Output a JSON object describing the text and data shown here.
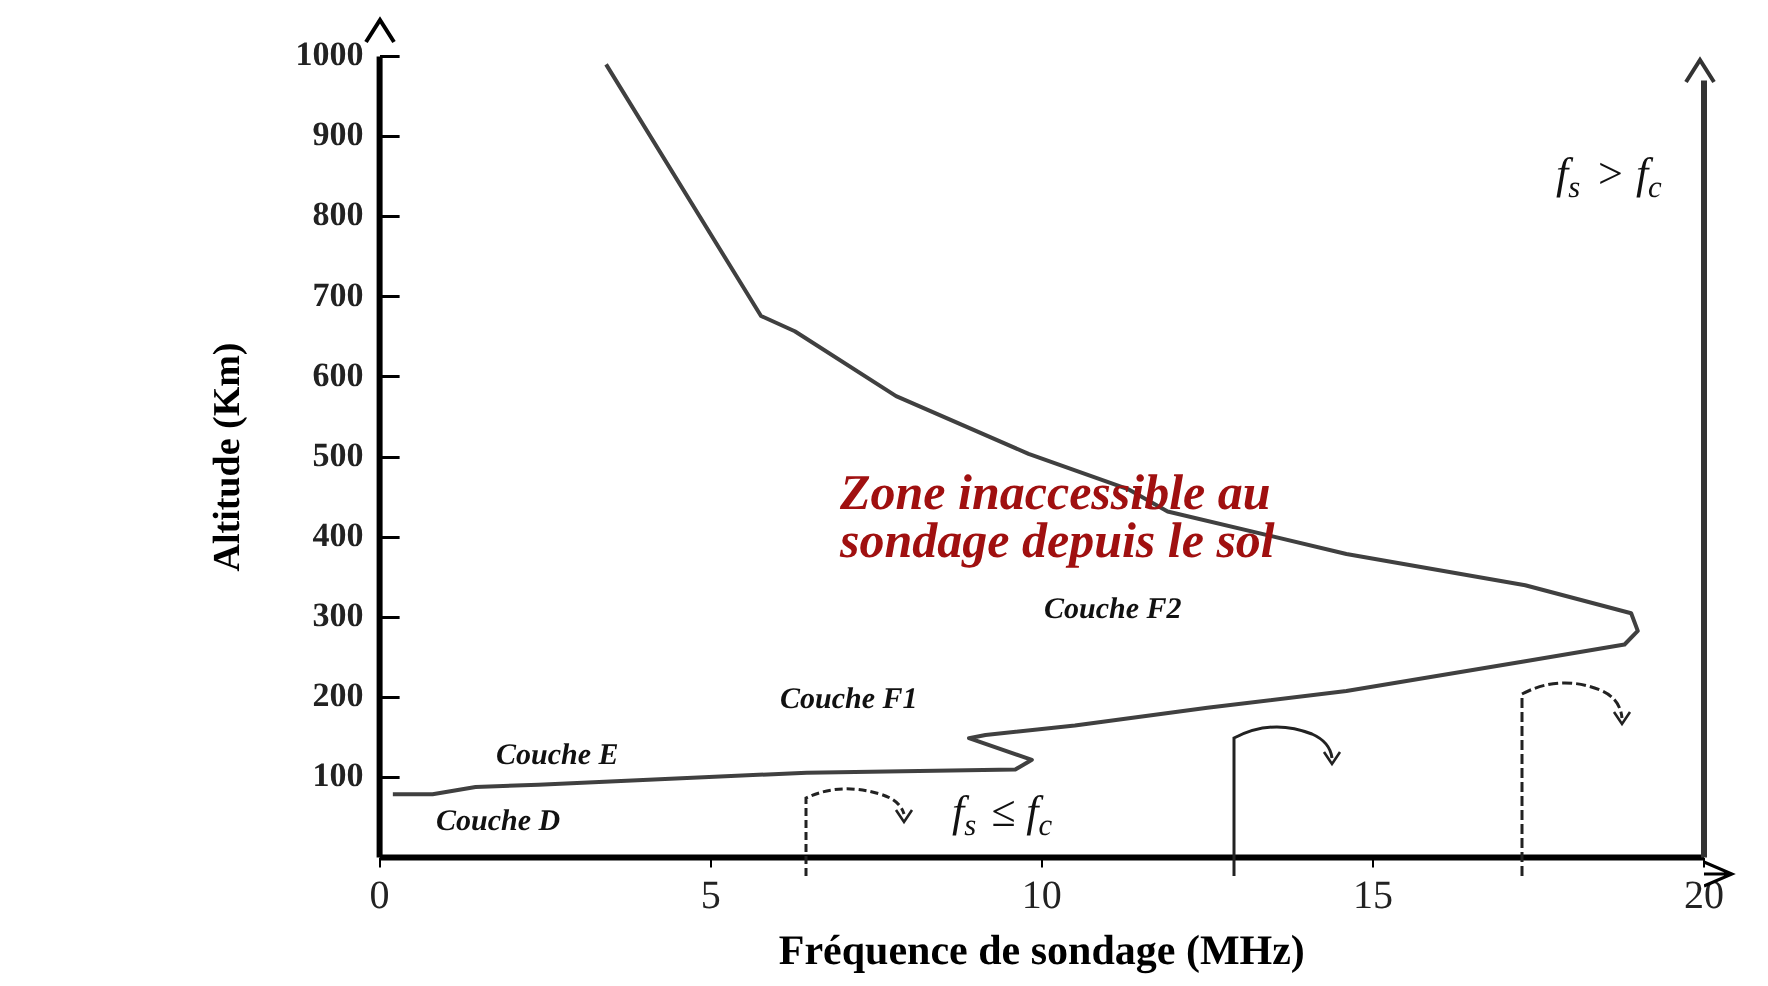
{
  "chart_data": {
    "type": "line",
    "xlabel": "Fréquence de sondage (MHz)",
    "ylabel": "Altitude (Km)",
    "xlim": [
      0,
      20
    ],
    "xticks": [
      0,
      5,
      10,
      15,
      20
    ],
    "ylim": [
      0,
      1000
    ],
    "yticks": [
      100,
      200,
      300,
      400,
      500,
      600,
      700,
      800,
      900,
      1000
    ],
    "grid": false,
    "legend": false,
    "marker": "none",
    "line_style": "solid",
    "series": [
      {
        "color": "#404040",
        "x": [
          3.42,
          5.76,
          6.27,
          7.8,
          9.8,
          11.3,
          11.9,
          14.6,
          17.3,
          18.9,
          19.0,
          18.8,
          17.3,
          14.6,
          12.5,
          10.5,
          9.15,
          8.9,
          9.85,
          9.6,
          6.45,
          2.4,
          1.45,
          0.8,
          0.2
        ],
        "values": [
          990,
          676,
          657,
          576,
          504,
          460,
          432,
          379,
          340,
          305,
          283,
          266,
          245,
          208,
          187,
          165,
          153,
          149,
          122,
          110,
          106,
          91,
          88,
          79,
          79
        ]
      }
    ],
    "ref_lines": [
      {
        "axis": "x",
        "value": 20,
        "color": "#333333"
      }
    ],
    "annotations": [
      "Couche D",
      "Couche E",
      "Couche F1",
      "Couche F2",
      "Zone inaccessible au sondage depuis le sol",
      "f$_{s}$ ≤ f$_{c}$",
      "f$_{s}$ > f$_{c}$"
    ]
  }
}
